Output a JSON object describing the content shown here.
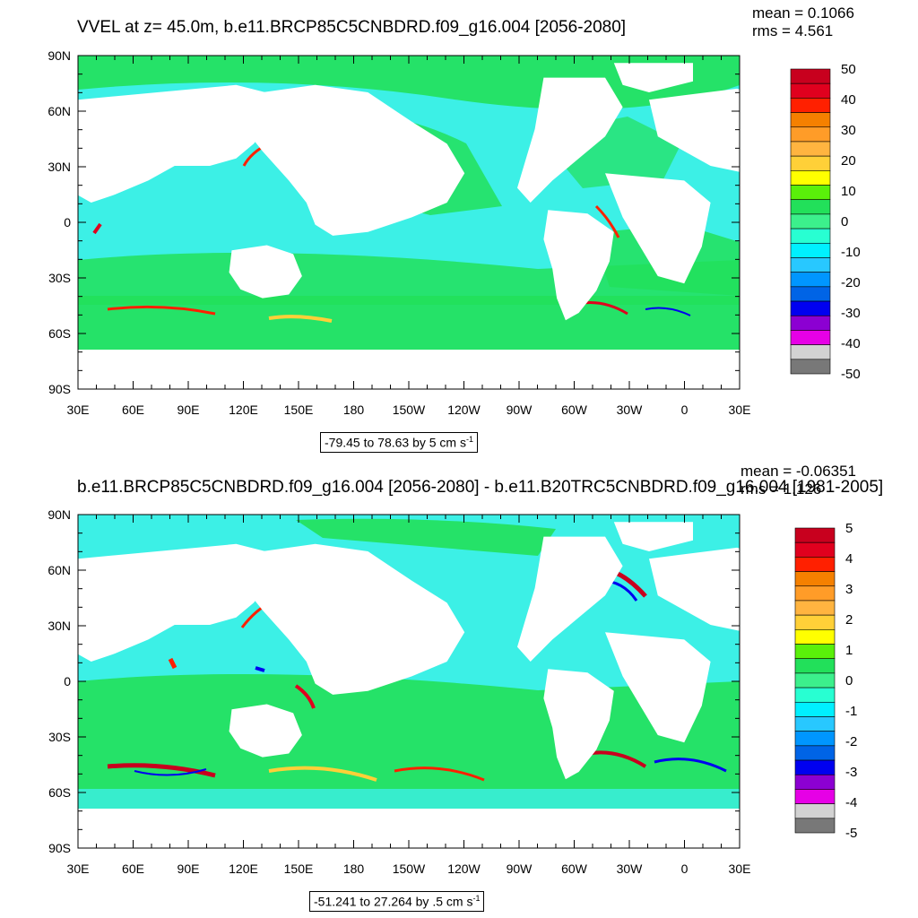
{
  "panels": [
    {
      "title": "VVEL at z=  45.0m, b.e11.BRCP85C5CNBDRD.f09_g16.004 [2056-2080]",
      "stats": {
        "mean": "mean = 0.1066",
        "rms": "rms = 4.561"
      },
      "range_text": "-79.45 to 78.63 by 5 cm s",
      "range_unit_exp": "-1",
      "colorbar_labels": [
        "50",
        "40",
        "30",
        "20",
        "10",
        "0",
        "-10",
        "-20",
        "-30",
        "-40",
        "-50"
      ],
      "colorbar_colors": [
        "#c8001e",
        "#e0001e",
        "#ff2000",
        "#f58000",
        "#ff9c28",
        "#ffb440",
        "#ffd038",
        "#ffff00",
        "#5af00a",
        "#22e05a",
        "#3cf08c",
        "#28ffd2",
        "#00f0ff",
        "#28c8ff",
        "#0096ff",
        "#0064e6",
        "#0000f0",
        "#8c00d2",
        "#e600e6",
        "#d2d2d2",
        "#787878"
      ]
    },
    {
      "title": "b.e11.BRCP85C5CNBDRD.f09_g16.004 [2056-2080] - b.e11.B20TRC5CNBDRD.f09_g16.004 [1981-2005]",
      "stats": {
        "mean": "mean = -0.06351",
        "rms": "rms = 1.126"
      },
      "range_text": "-51.241 to 27.264 by .5 cm s",
      "range_unit_exp": "-1",
      "colorbar_labels": [
        "5",
        "4",
        "3",
        "2",
        "1",
        "0",
        "-1",
        "-2",
        "-3",
        "-4",
        "-5"
      ],
      "colorbar_colors": [
        "#c8001e",
        "#e0001e",
        "#ff2000",
        "#f58000",
        "#ff9c28",
        "#ffb440",
        "#ffd038",
        "#ffff00",
        "#5af00a",
        "#22e05a",
        "#3cf08c",
        "#28ffd2",
        "#00f0ff",
        "#28c8ff",
        "#0096ff",
        "#0064e6",
        "#0000f0",
        "#8c00d2",
        "#e600e6",
        "#d2d2d2",
        "#787878"
      ]
    }
  ],
  "lat_labels": [
    "90N",
    "60N",
    "30N",
    "0",
    "30S",
    "60S",
    "90S"
  ],
  "lon_labels": [
    "30E",
    "60E",
    "90E",
    "120E",
    "150E",
    "180",
    "150W",
    "120W",
    "90W",
    "60W",
    "30W",
    "0",
    "30E"
  ],
  "colors": {
    "ocean_green": "#22e05a",
    "ocean_cyan": "#3cf0e6",
    "land": "#ffffff"
  }
}
